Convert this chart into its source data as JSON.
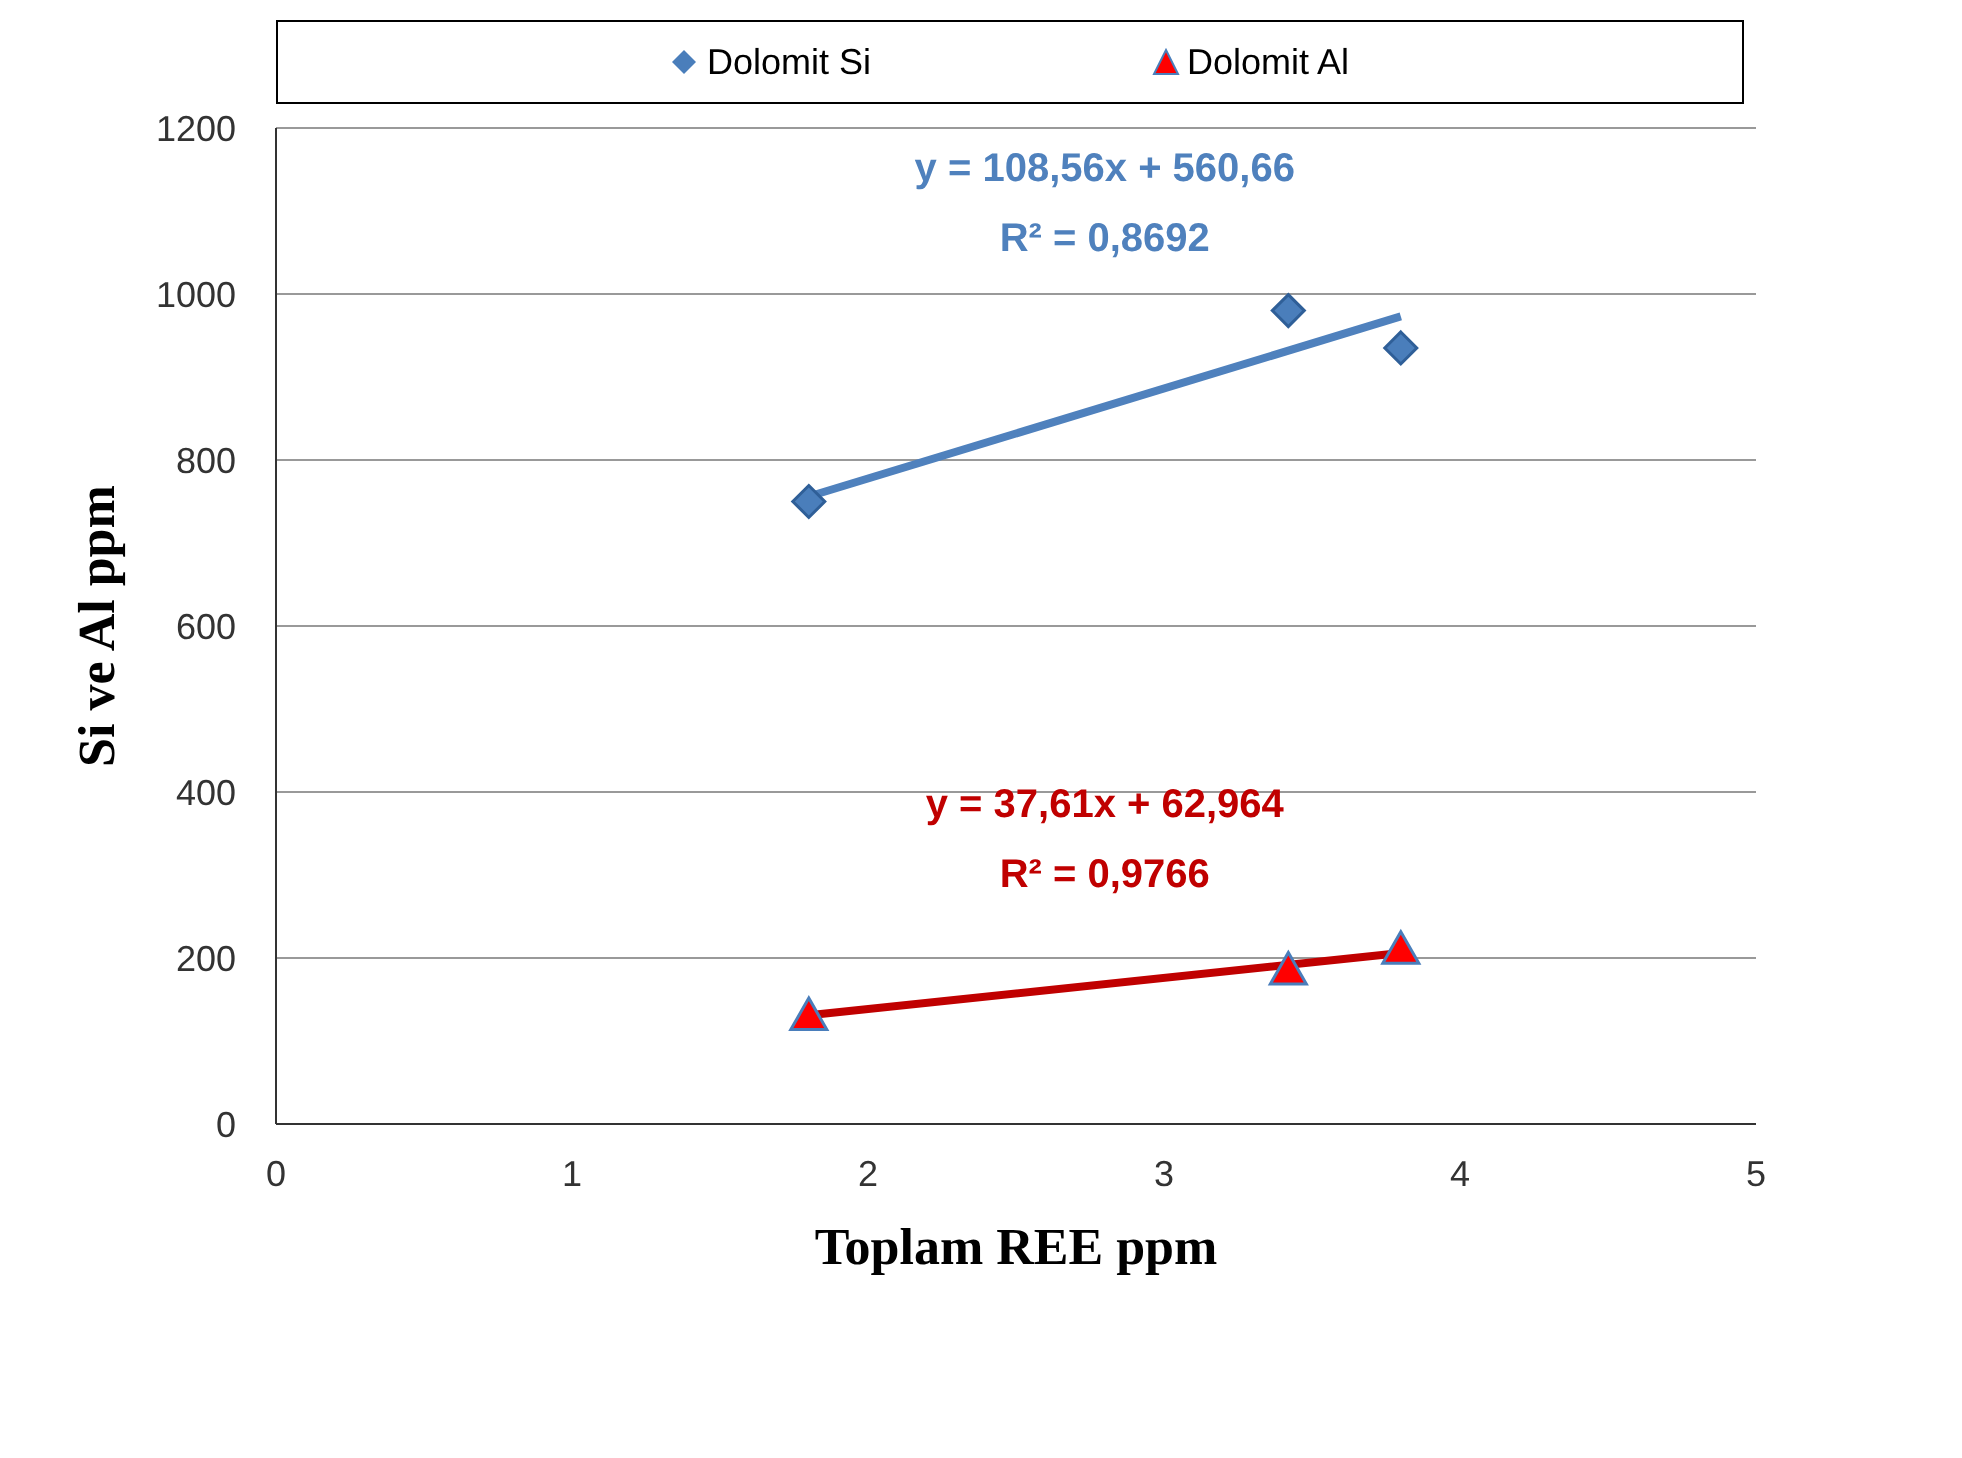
{
  "chart_data": {
    "type": "scatter",
    "xlabel": "Toplam REE ppm",
    "ylabel": "Si ve Al ppm",
    "xlim": [
      0,
      5
    ],
    "xticks": [
      0,
      1,
      2,
      3,
      4,
      5
    ],
    "ylim": [
      0,
      1200
    ],
    "yticks": [
      0,
      200,
      400,
      600,
      800,
      1000,
      1200
    ],
    "grid": "y",
    "legend": "top",
    "series": [
      {
        "name": "Dolomit Si",
        "marker": "diamond",
        "color": "#4a7ebb",
        "x": [
          1.8,
          3.42,
          3.8
        ],
        "values": [
          750,
          980,
          935
        ]
      },
      {
        "name": "Dolomit Al",
        "marker": "triangle",
        "color": "#ff0000",
        "x": [
          1.8,
          3.42,
          3.8
        ],
        "values": [
          130,
          185,
          210
        ]
      },
      {
        "type": "line",
        "color": "#4f81bd",
        "x": [
          1.8,
          3.8
        ],
        "values": [
          756,
          973
        ]
      },
      {
        "type": "line",
        "color": "#c00000",
        "x": [
          1.8,
          3.8
        ],
        "values": [
          131,
          206
        ]
      }
    ],
    "annotations": [
      "y = 108,56x + 560,66",
      "R² = 0,8692",
      "y = 37,61x + 62,964",
      "R² = 0,9766"
    ]
  }
}
